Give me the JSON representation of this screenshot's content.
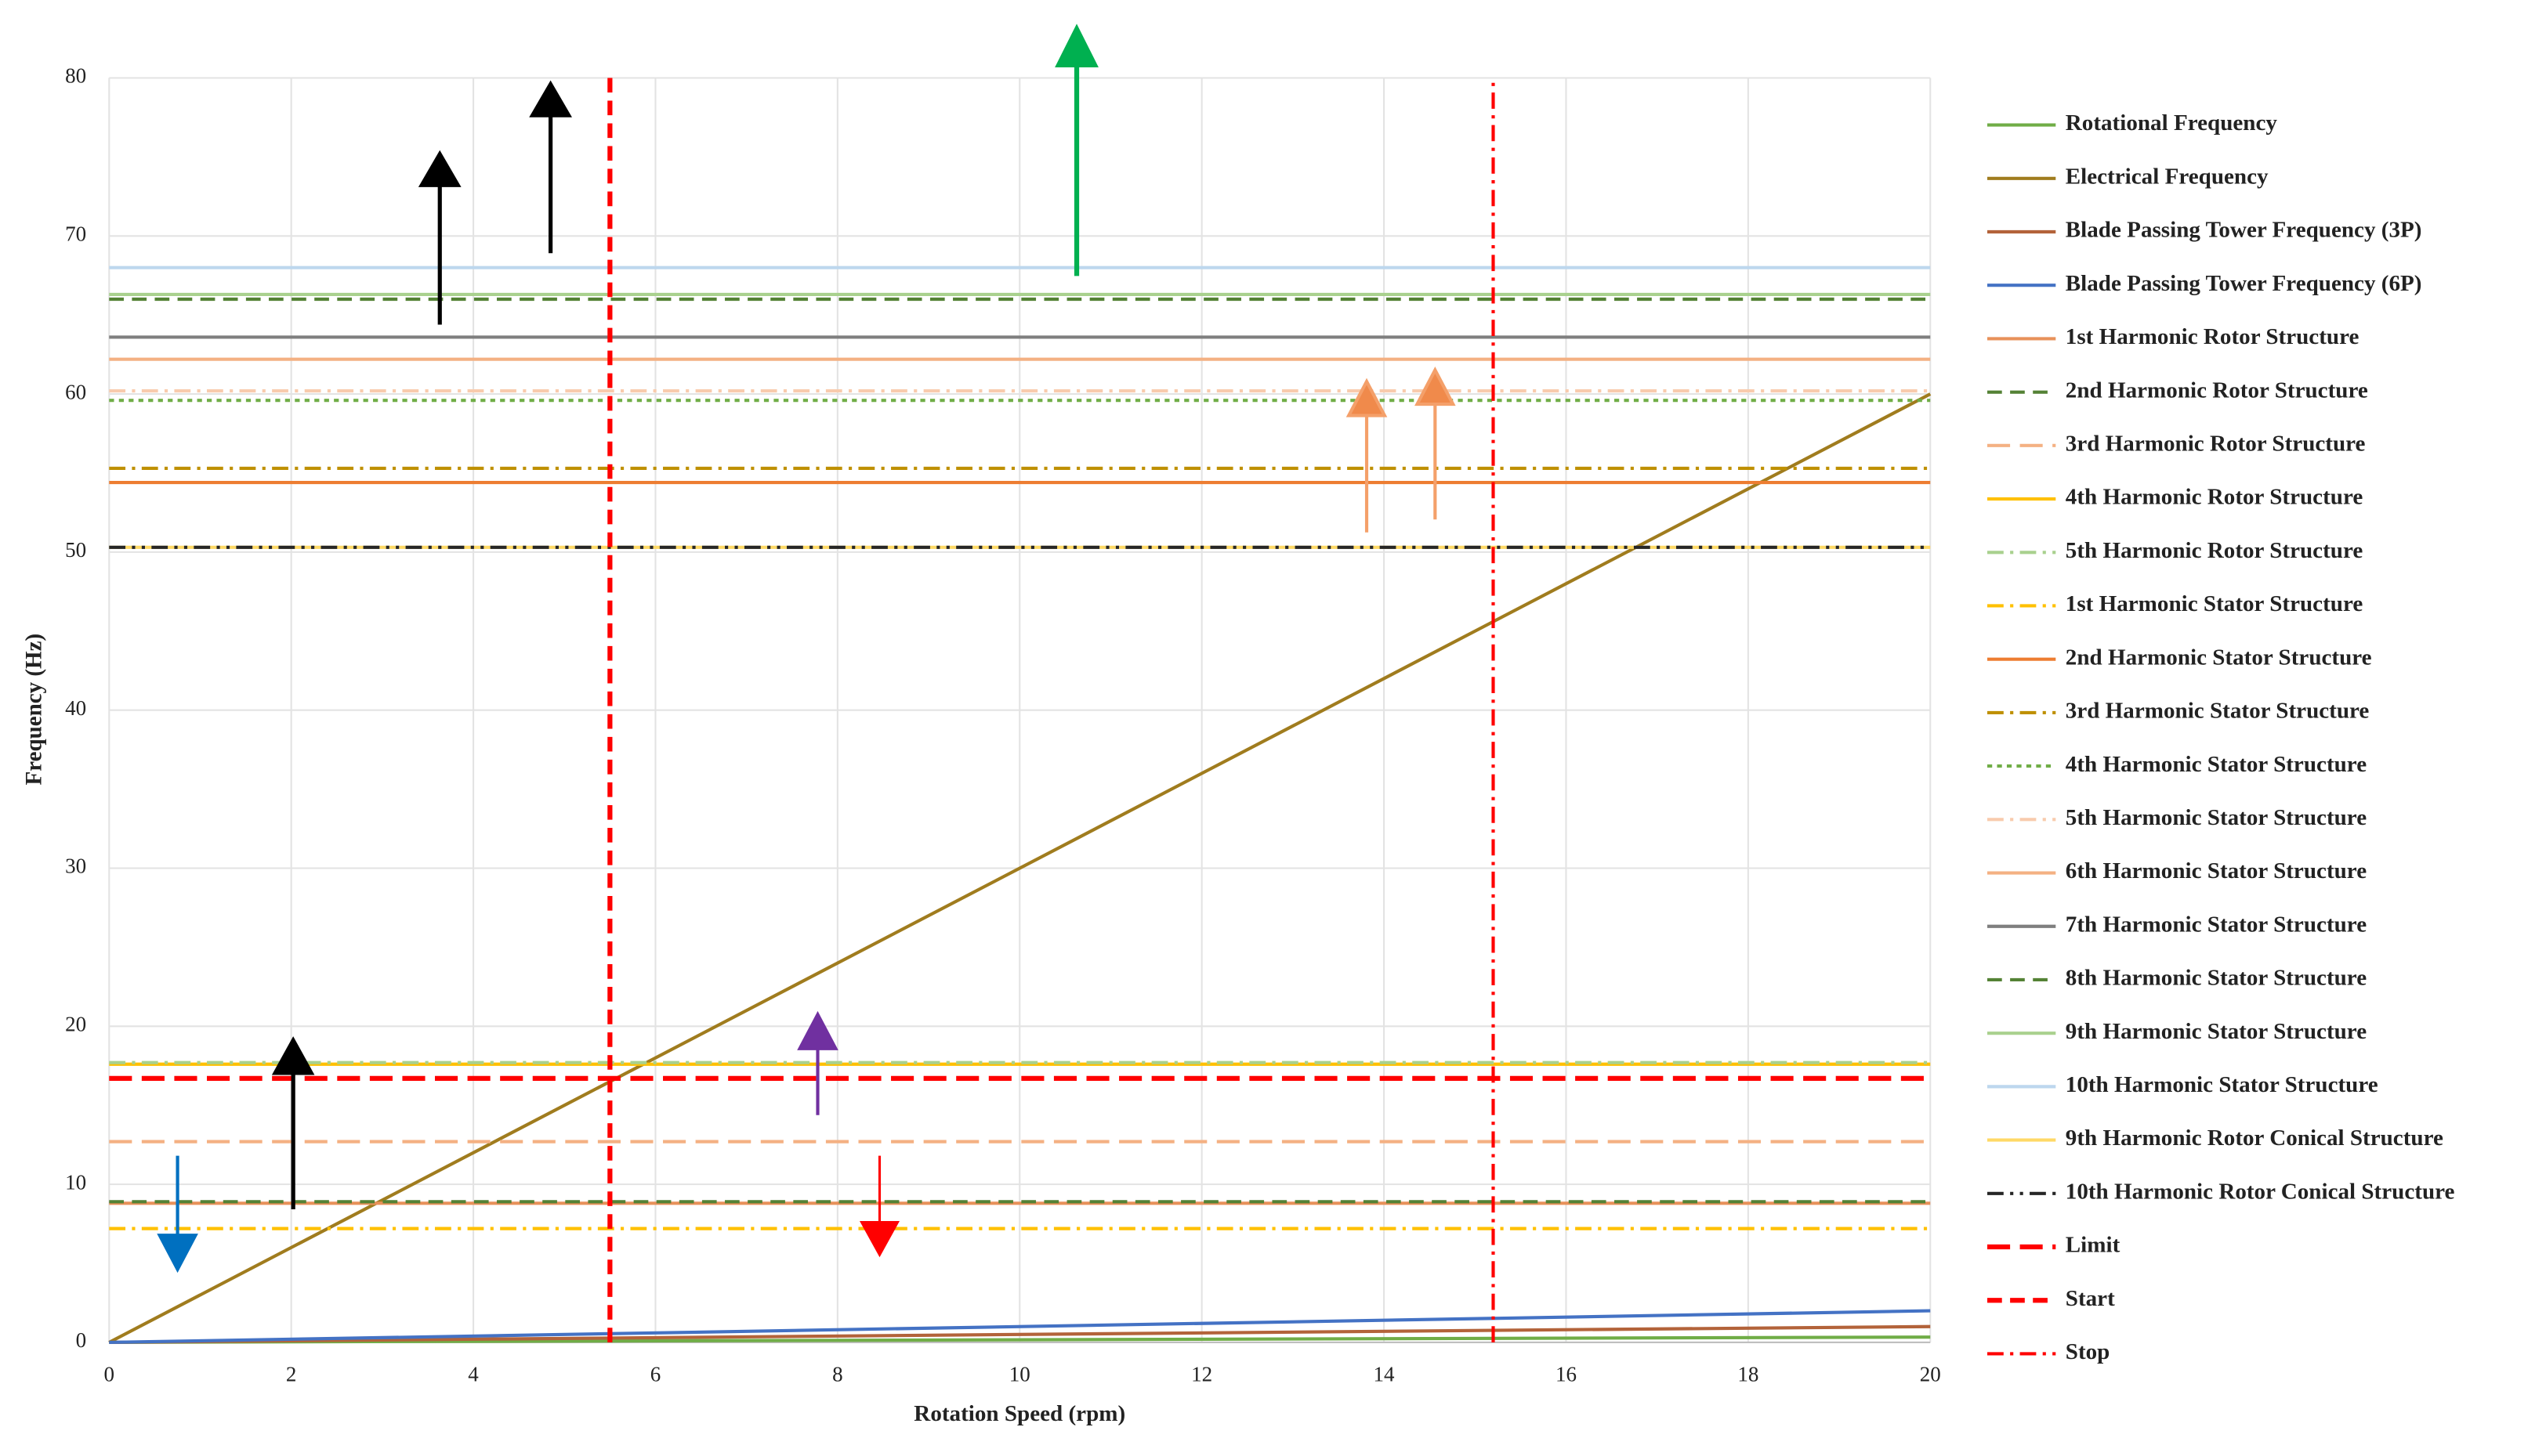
{
  "chart_data": {
    "type": "line",
    "x_label": "Rotation Speed (rpm)",
    "y_label": "Frequency (Hz)",
    "xlim": [
      0,
      20
    ],
    "ylim": [
      0,
      80
    ],
    "xticks": [
      0,
      2,
      4,
      6,
      8,
      10,
      12,
      14,
      16,
      18,
      20
    ],
    "yticks": [
      0,
      10,
      20,
      30,
      40,
      50,
      60,
      70,
      80
    ],
    "grid": true,
    "legend": "right",
    "series": [
      {
        "name": "Rotational Frequency",
        "color": "#70ad47",
        "dash": "solid",
        "x": [
          0,
          20
        ],
        "values": [
          0,
          0.333
        ]
      },
      {
        "name": "Electrical Frequency",
        "color": "#a07c1e",
        "dash": "solid",
        "x": [
          0,
          20
        ],
        "values": [
          0,
          60
        ]
      },
      {
        "name": "Blade Passing Tower Frequency (3P)",
        "color": "#b3633a",
        "dash": "solid",
        "x": [
          0,
          20
        ],
        "values": [
          0,
          1
        ]
      },
      {
        "name": "Blade Passing Tower Frequency (6P)",
        "color": "#4472c4",
        "dash": "solid",
        "x": [
          0,
          20
        ],
        "values": [
          0,
          2
        ]
      },
      {
        "name": "1st Harmonic Rotor Structure",
        "color": "#e8915a",
        "dash": "solid",
        "x": [
          0,
          20
        ],
        "values": [
          8.8,
          8.8
        ]
      },
      {
        "name": "2nd Harmonic Rotor Structure",
        "color": "#548235",
        "dash": "dash",
        "x": [
          0,
          20
        ],
        "values": [
          8.9,
          8.9
        ]
      },
      {
        "name": "3rd Harmonic Rotor Structure",
        "color": "#f4b183",
        "dash": "longdash",
        "x": [
          0,
          20
        ],
        "values": [
          12.7,
          12.7
        ]
      },
      {
        "name": "4th Harmonic Rotor Structure",
        "color": "#ffc000",
        "dash": "solid",
        "x": [
          0,
          20
        ],
        "values": [
          17.6,
          17.6
        ]
      },
      {
        "name": "5th Harmonic Rotor Structure",
        "color": "#a9d18e",
        "dash": "dashdot",
        "x": [
          0,
          20
        ],
        "values": [
          17.7,
          17.7
        ]
      },
      {
        "name": "1st Harmonic Stator Structure",
        "color": "#ffc000",
        "dash": "dashdot",
        "x": [
          0,
          20
        ],
        "values": [
          7.2,
          7.2
        ]
      },
      {
        "name": "2nd Harmonic Stator Structure",
        "color": "#ed7d31",
        "dash": "solid",
        "x": [
          0,
          20
        ],
        "values": [
          54.4,
          54.4
        ]
      },
      {
        "name": "3rd Harmonic Stator Structure",
        "color": "#bf9000",
        "dash": "dashdot",
        "x": [
          0,
          20
        ],
        "values": [
          55.3,
          55.3
        ]
      },
      {
        "name": "4th Harmonic Stator Structure",
        "color": "#70ad47",
        "dash": "dot",
        "x": [
          0,
          20
        ],
        "values": [
          59.6,
          59.6
        ]
      },
      {
        "name": "5th Harmonic Stator Structure",
        "color": "#f8cbad",
        "dash": "dashdot",
        "x": [
          0,
          20
        ],
        "values": [
          60.2,
          60.2
        ]
      },
      {
        "name": "6th Harmonic Stator Structure",
        "color": "#f4b183",
        "dash": "solid",
        "x": [
          0,
          20
        ],
        "values": [
          62.2,
          62.2
        ]
      },
      {
        "name": "7th Harmonic Stator Structure",
        "color": "#7f7f7f",
        "dash": "solid",
        "x": [
          0,
          20
        ],
        "values": [
          63.6,
          63.6
        ]
      },
      {
        "name": "8th Harmonic Stator Structure",
        "color": "#548235",
        "dash": "dash",
        "x": [
          0,
          20
        ],
        "values": [
          66,
          66
        ]
      },
      {
        "name": "9th Harmonic Stator Structure",
        "color": "#a9d18e",
        "dash": "solid",
        "x": [
          0,
          20
        ],
        "values": [
          66.3,
          66.3
        ]
      },
      {
        "name": "10th Harmonic Stator Structure",
        "color": "#bdd7ee",
        "dash": "solid",
        "x": [
          0,
          20
        ],
        "values": [
          68,
          68
        ]
      },
      {
        "name": "9th Harmonic Rotor Conical Structure",
        "color": "#ffd966",
        "dash": "solid",
        "x": [
          0,
          20
        ],
        "values": [
          50.3,
          50.3
        ]
      },
      {
        "name": "10th Harmonic Rotor Conical Structure",
        "color": "#262626",
        "dash": "dashdotdot",
        "x": [
          0,
          20
        ],
        "values": [
          50.3,
          50.3
        ]
      },
      {
        "name": "Limit",
        "color": "#ff0000",
        "dash": "longdash",
        "x": [
          0,
          20
        ],
        "values": [
          16.7,
          16.7
        ]
      },
      {
        "name": "Start",
        "color": "#ff0000",
        "dash": "dash",
        "x": [
          5.5,
          5.5
        ],
        "values": [
          0,
          80
        ]
      },
      {
        "name": "Stop",
        "color": "#ff0000",
        "dash": "dashdot",
        "x": [
          15.2,
          15.2
        ],
        "values": [
          0,
          80
        ]
      }
    ]
  }
}
